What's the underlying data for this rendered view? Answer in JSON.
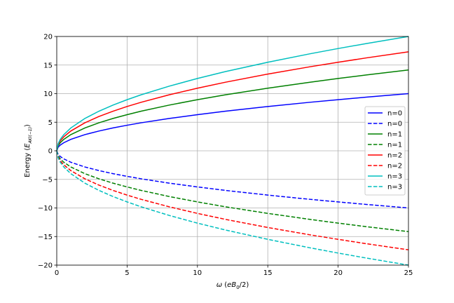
{
  "chart_data": {
    "type": "line",
    "xlabel": "ω (eB₀/2)",
    "ylabel": "Energy (E_{AKI(−1)})",
    "xlim": [
      0,
      25
    ],
    "ylim": [
      -20,
      20
    ],
    "xticks": [
      0,
      5,
      10,
      15,
      20,
      25
    ],
    "yticks": [
      -20,
      -15,
      -10,
      -5,
      0,
      5,
      10,
      15,
      20
    ],
    "grid": true,
    "legend_position": "center-right",
    "x": [
      0,
      0.1,
      0.25,
      0.5,
      1,
      2,
      3,
      4,
      5,
      6,
      8,
      10,
      12,
      15,
      18,
      20,
      22,
      25
    ],
    "series": [
      {
        "name": "n=0",
        "color": "#0000ff",
        "dash": "solid",
        "values": [
          0,
          0.63,
          1.0,
          1.41,
          2.0,
          2.83,
          3.46,
          4.0,
          4.47,
          4.9,
          5.66,
          6.32,
          6.93,
          7.75,
          8.49,
          8.94,
          9.38,
          10.0
        ]
      },
      {
        "name": "n=0",
        "color": "#0000ff",
        "dash": "dashed",
        "values": [
          0,
          -0.63,
          -1.0,
          -1.41,
          -2.0,
          -2.83,
          -3.46,
          -4.0,
          -4.47,
          -4.9,
          -5.66,
          -6.32,
          -6.93,
          -7.75,
          -8.49,
          -8.94,
          -9.38,
          -10.0
        ]
      },
      {
        "name": "n=1",
        "color": "#008000",
        "dash": "solid",
        "values": [
          0,
          0.89,
          1.41,
          2.0,
          2.83,
          4.0,
          4.9,
          5.66,
          6.32,
          6.93,
          8.0,
          8.94,
          9.8,
          10.95,
          12.0,
          12.65,
          13.27,
          14.14
        ]
      },
      {
        "name": "n=1",
        "color": "#008000",
        "dash": "dashed",
        "values": [
          0,
          -0.89,
          -1.41,
          -2.0,
          -2.83,
          -4.0,
          -4.9,
          -5.66,
          -6.32,
          -6.93,
          -8.0,
          -8.94,
          -9.8,
          -10.95,
          -12.0,
          -12.65,
          -13.27,
          -14.14
        ]
      },
      {
        "name": "n=2",
        "color": "#ff0000",
        "dash": "solid",
        "values": [
          0,
          1.1,
          1.73,
          2.45,
          3.46,
          4.9,
          6.0,
          6.93,
          7.75,
          8.49,
          9.8,
          10.95,
          12.0,
          13.42,
          14.7,
          15.49,
          16.25,
          17.32
        ]
      },
      {
        "name": "n=2",
        "color": "#ff0000",
        "dash": "dashed",
        "values": [
          0,
          -1.1,
          -1.73,
          -2.45,
          -3.46,
          -4.9,
          -6.0,
          -6.93,
          -7.75,
          -8.49,
          -9.8,
          -10.95,
          -12.0,
          -13.42,
          -14.7,
          -15.49,
          -16.25,
          -17.32
        ]
      },
      {
        "name": "n=3",
        "color": "#00bfbf",
        "dash": "solid",
        "values": [
          0,
          1.26,
          2.0,
          2.83,
          4.0,
          5.66,
          6.93,
          8.0,
          8.94,
          9.8,
          11.31,
          12.65,
          13.86,
          15.49,
          16.97,
          17.89,
          18.76,
          20.0
        ]
      },
      {
        "name": "n=3",
        "color": "#00bfbf",
        "dash": "dashed",
        "values": [
          0,
          -1.26,
          -2.0,
          -2.83,
          -4.0,
          -5.66,
          -6.93,
          -8.0,
          -8.94,
          -9.8,
          -11.31,
          -12.65,
          -13.86,
          -15.49,
          -16.97,
          -17.89,
          -18.76,
          -20.0
        ]
      }
    ]
  }
}
